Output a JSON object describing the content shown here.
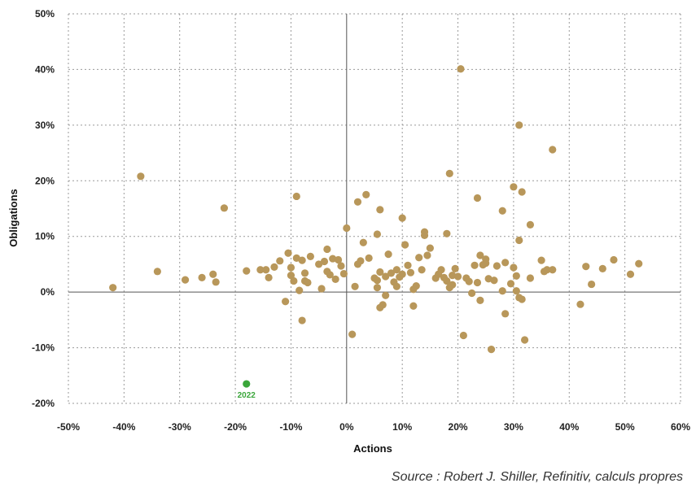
{
  "source": "Source : Robert J. Shiller, Refinitiv, calculs propres",
  "chart_data": {
    "type": "scatter",
    "title": "",
    "xlabel": "Actions",
    "ylabel": "Obligations",
    "xlim": [
      -50,
      60
    ],
    "ylim": [
      -20,
      50
    ],
    "xticks": [
      -50,
      -40,
      -30,
      -20,
      -10,
      0,
      10,
      20,
      30,
      40,
      50,
      60
    ],
    "yticks": [
      -20,
      -10,
      0,
      10,
      20,
      30,
      40,
      50
    ],
    "xtick_labels": [
      "-50%",
      "-40%",
      "-30%",
      "-20%",
      "-10%",
      "0%",
      "10%",
      "20%",
      "30%",
      "40%",
      "50%",
      "60%"
    ],
    "ytick_labels": [
      "-20%",
      "-10%",
      "0%",
      "10%",
      "20%",
      "30%",
      "40%",
      "50%"
    ],
    "grid": true,
    "colors": {
      "points": "#b8975a",
      "highlight": "#3aa63a",
      "axis": "#555555",
      "grid": "#9a9a9a"
    },
    "series": [
      {
        "points": [
          [
            -42,
            0.8
          ],
          [
            -37,
            20.8
          ],
          [
            -34,
            3.7
          ],
          [
            -29,
            2.2
          ],
          [
            -26,
            2.6
          ],
          [
            -24,
            3.2
          ],
          [
            -23.5,
            1.8
          ],
          [
            -22,
            15.1
          ],
          [
            -18,
            3.8
          ],
          [
            -15.5,
            4.0
          ],
          [
            -14.5,
            4.0
          ],
          [
            -14,
            2.6
          ],
          [
            -13,
            4.5
          ],
          [
            -12,
            5.6
          ],
          [
            -11,
            -1.7
          ],
          [
            -10.5,
            7.0
          ],
          [
            -10,
            4.4
          ],
          [
            -10,
            3.0
          ],
          [
            -9.5,
            2.0
          ],
          [
            -9,
            17.2
          ],
          [
            -9,
            6.1
          ],
          [
            -8.5,
            0.3
          ],
          [
            -8,
            -5.1
          ],
          [
            -8,
            5.7
          ],
          [
            -7.5,
            3.4
          ],
          [
            -7.5,
            2.0
          ],
          [
            -7,
            1.7
          ],
          [
            -6.5,
            6.4
          ],
          [
            -5,
            5.0
          ],
          [
            -4.5,
            0.6
          ],
          [
            -4,
            5.5
          ],
          [
            -3.5,
            3.7
          ],
          [
            -3.5,
            7.7
          ],
          [
            -3,
            3.1
          ],
          [
            -2.5,
            6.0
          ],
          [
            -2,
            2.3
          ],
          [
            -1.5,
            5.8
          ],
          [
            -1,
            4.7
          ],
          [
            -0.5,
            3.3
          ],
          [
            0,
            11.5
          ],
          [
            1,
            -7.6
          ],
          [
            1.5,
            1.0
          ],
          [
            2,
            16.2
          ],
          [
            2,
            5.0
          ],
          [
            2.5,
            5.6
          ],
          [
            3,
            8.9
          ],
          [
            3.5,
            17.5
          ],
          [
            4,
            6.1
          ],
          [
            5,
            2.5
          ],
          [
            5.5,
            10.4
          ],
          [
            5.5,
            0.8
          ],
          [
            5.5,
            2.1
          ],
          [
            6,
            14.8
          ],
          [
            6,
            3.6
          ],
          [
            6,
            -2.8
          ],
          [
            6.5,
            -2.3
          ],
          [
            7,
            2.8
          ],
          [
            7,
            -0.6
          ],
          [
            7.5,
            6.8
          ],
          [
            8,
            3.4
          ],
          [
            8.5,
            1.8
          ],
          [
            9,
            1.0
          ],
          [
            9,
            4.0
          ],
          [
            9.5,
            2.7
          ],
          [
            10,
            13.3
          ],
          [
            10,
            3.2
          ],
          [
            10.5,
            8.5
          ],
          [
            11,
            4.8
          ],
          [
            11.5,
            3.5
          ],
          [
            12,
            -2.5
          ],
          [
            12,
            0.5
          ],
          [
            12.5,
            1.1
          ],
          [
            13,
            6.2
          ],
          [
            13.5,
            4.0
          ],
          [
            14,
            10.2
          ],
          [
            14,
            10.8
          ],
          [
            14.5,
            6.6
          ],
          [
            15,
            7.9
          ],
          [
            16,
            2.5
          ],
          [
            16.5,
            3.2
          ],
          [
            17,
            4.0
          ],
          [
            17.5,
            2.6
          ],
          [
            18,
            10.5
          ],
          [
            18,
            2.0
          ],
          [
            18.5,
            21.3
          ],
          [
            18.5,
            0.8
          ],
          [
            19,
            3.0
          ],
          [
            19,
            1.3
          ],
          [
            19.5,
            4.2
          ],
          [
            20,
            2.8
          ],
          [
            20.5,
            40.1
          ],
          [
            21,
            -7.8
          ],
          [
            21.5,
            2.5
          ],
          [
            22,
            1.9
          ],
          [
            22.5,
            -0.2
          ],
          [
            23,
            4.8
          ],
          [
            23.5,
            1.7
          ],
          [
            23.5,
            16.9
          ],
          [
            24,
            -1.5
          ],
          [
            24,
            6.6
          ],
          [
            24.5,
            4.9
          ],
          [
            25,
            5.2
          ],
          [
            25,
            5.9
          ],
          [
            25.5,
            2.4
          ],
          [
            26,
            -10.3
          ],
          [
            26.5,
            2.1
          ],
          [
            27,
            4.7
          ],
          [
            28,
            14.6
          ],
          [
            28,
            0.2
          ],
          [
            28.5,
            5.3
          ],
          [
            28.5,
            -3.9
          ],
          [
            29.5,
            1.5
          ],
          [
            30,
            18.9
          ],
          [
            30,
            4.4
          ],
          [
            30.5,
            0.2
          ],
          [
            30.5,
            2.9
          ],
          [
            31,
            30.0
          ],
          [
            31,
            9.3
          ],
          [
            31,
            -1.0
          ],
          [
            31.5,
            18.0
          ],
          [
            31.5,
            -1.3
          ],
          [
            32,
            -8.6
          ],
          [
            33,
            12.1
          ],
          [
            33,
            2.5
          ],
          [
            35,
            5.7
          ],
          [
            35.5,
            3.7
          ],
          [
            36,
            4.0
          ],
          [
            37,
            4.0
          ],
          [
            37,
            25.6
          ],
          [
            42,
            -2.2
          ],
          [
            43,
            4.6
          ],
          [
            44,
            1.4
          ],
          [
            46,
            4.2
          ],
          [
            48,
            5.8
          ],
          [
            51,
            3.2
          ],
          [
            52.5,
            5.1
          ]
        ]
      },
      {
        "name": "2022",
        "highlight": true,
        "points": [
          [
            -18,
            -16.5
          ]
        ]
      }
    ]
  }
}
